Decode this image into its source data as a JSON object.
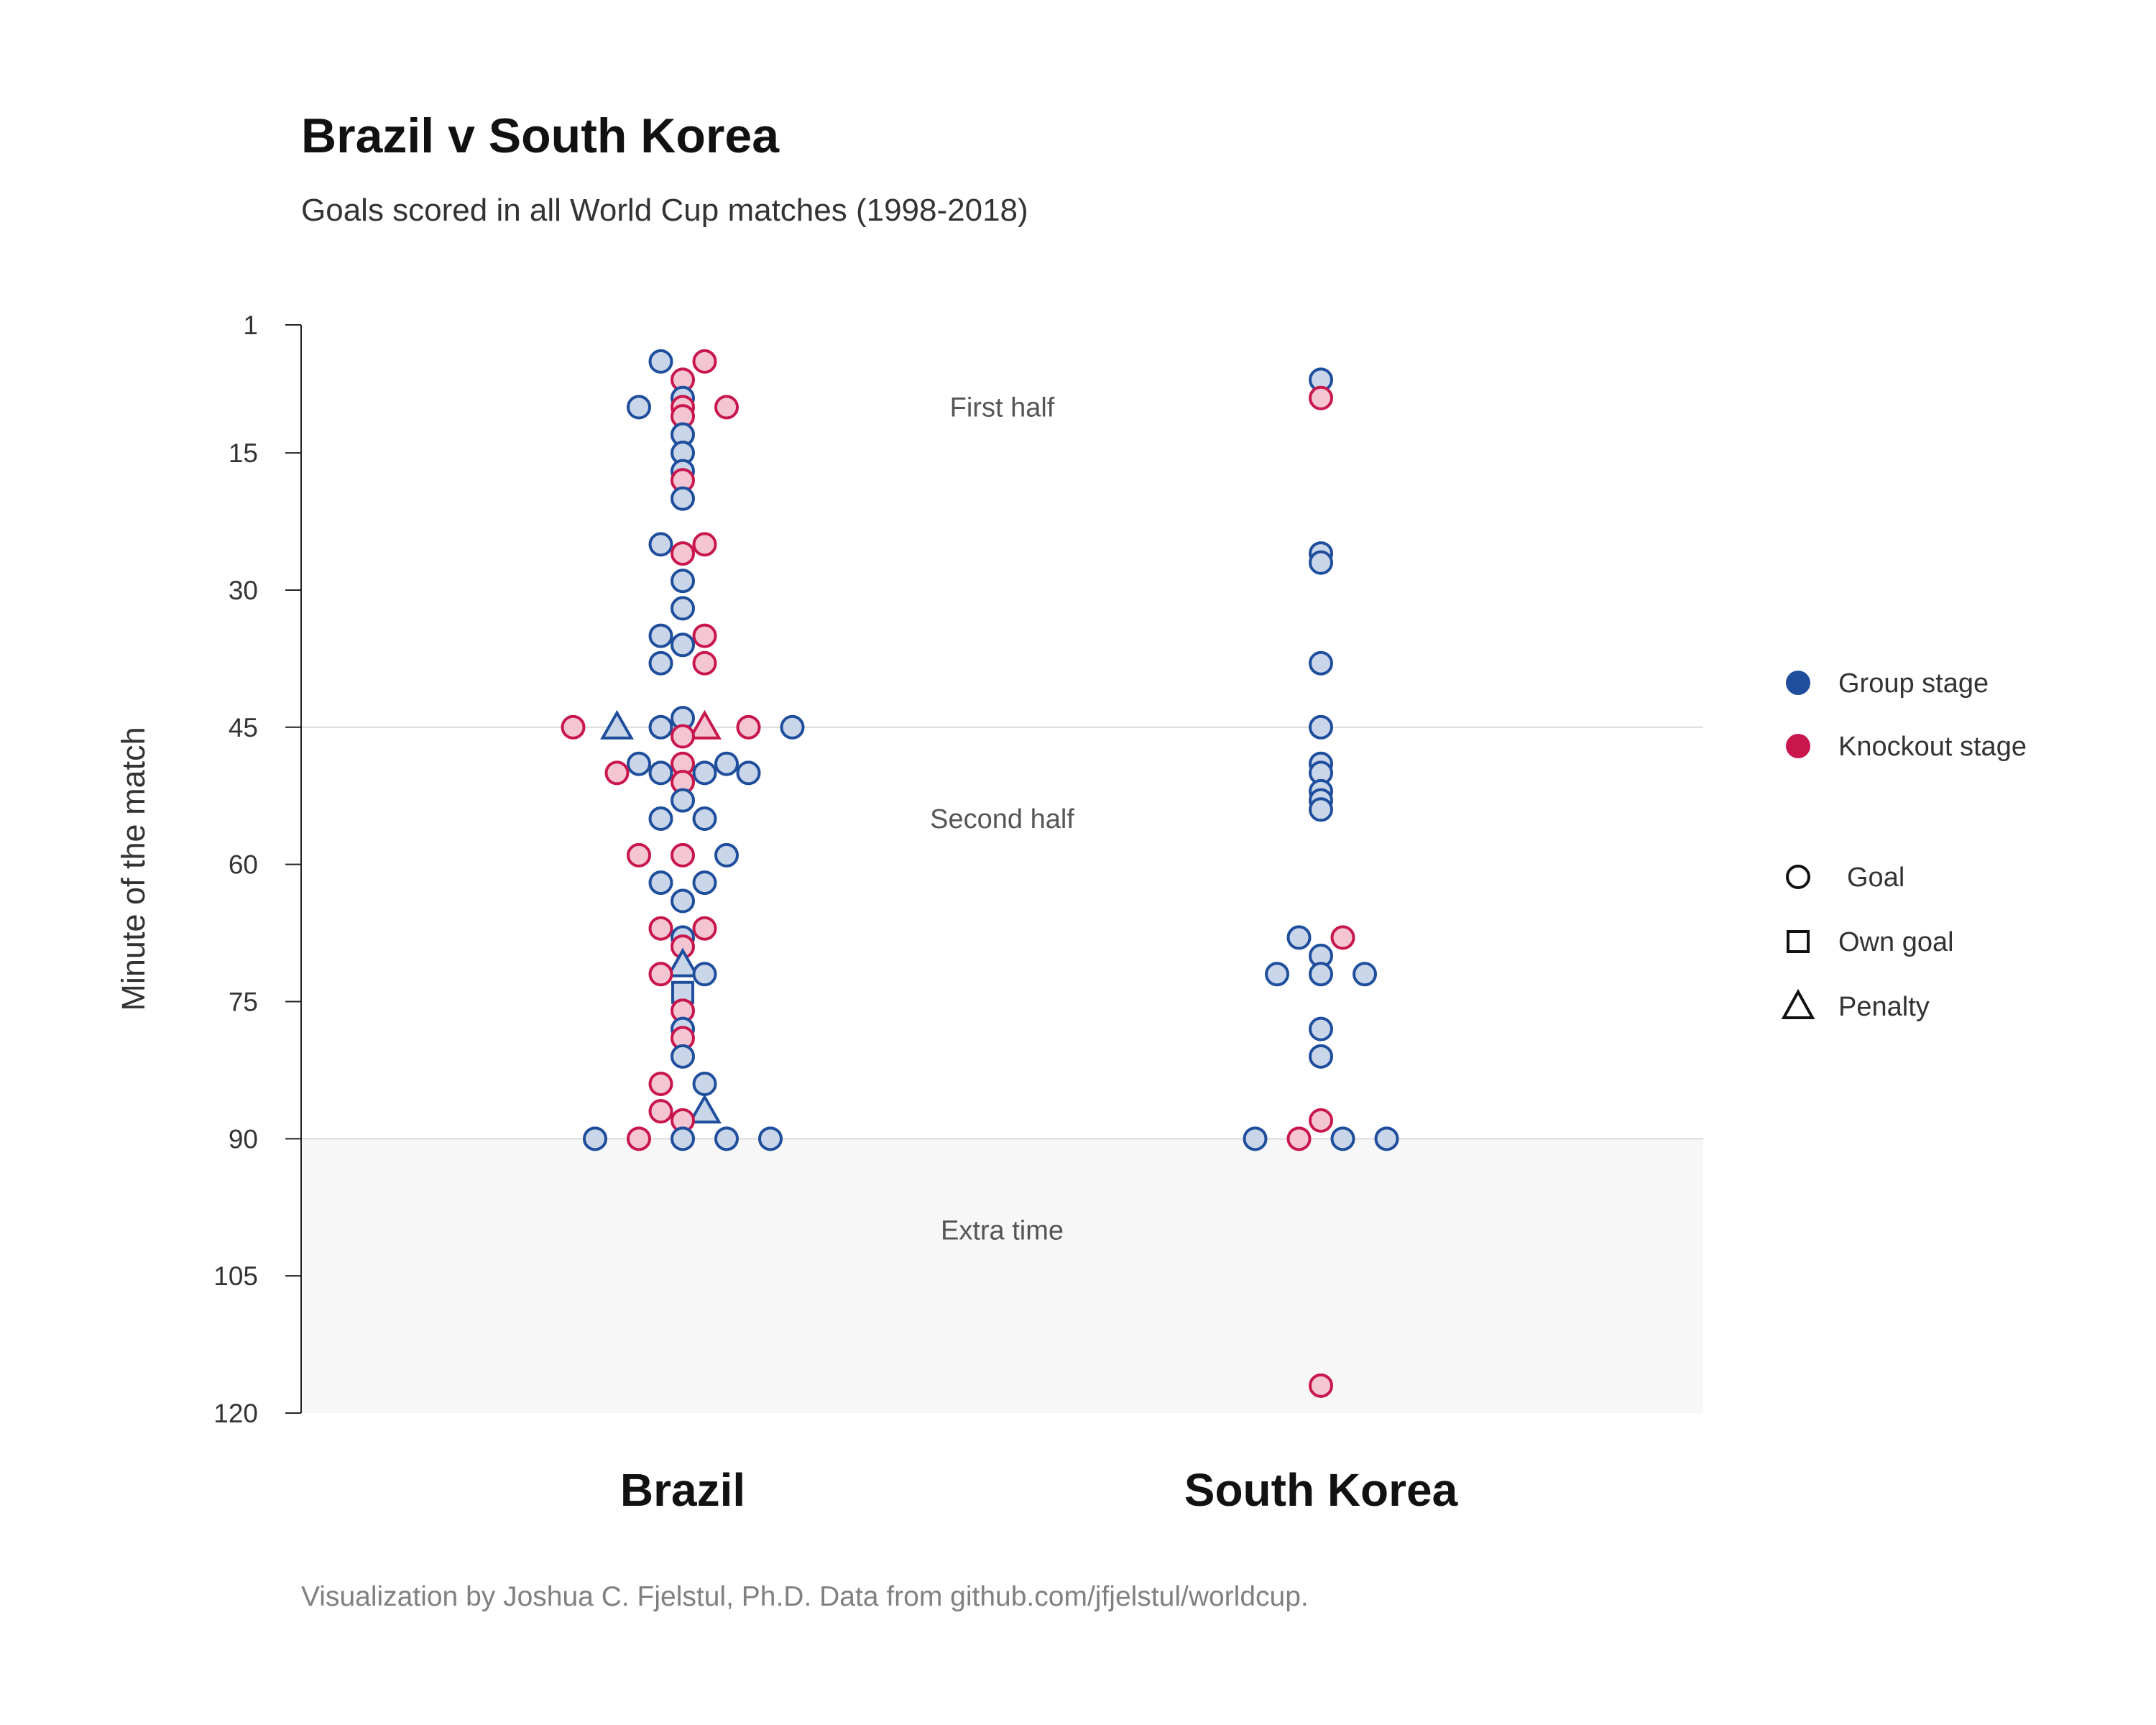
{
  "title": "Brazil v South Korea",
  "subtitle": "Goals scored in all World Cup matches (1998-2018)",
  "caption": "Visualization by Joshua C. Fjelstul, Ph.D. Data from github.com/jfjelstul/worldcup.",
  "colors": {
    "group": "#1f4e9c",
    "knockout": "#c8174d",
    "group_fill": "#c9d6ea",
    "knockout_fill": "#f4c6d4",
    "grid": "#d9d9d9",
    "extra_time_band": "#f7f7f7"
  },
  "legend": {
    "stage": [
      {
        "key": "group",
        "label": "Group stage"
      },
      {
        "key": "knockout",
        "label": "Knockout stage"
      }
    ],
    "type": [
      {
        "key": "goal",
        "label": "Goal"
      },
      {
        "key": "own_goal",
        "label": "Own goal"
      },
      {
        "key": "penalty",
        "label": "Penalty"
      }
    ]
  },
  "chart_data": {
    "type": "scatter",
    "ylabel": "Minute of the match",
    "xlabel": "",
    "ylim": [
      1,
      120
    ],
    "y_reversed": true,
    "yticks": [
      1,
      15,
      30,
      45,
      60,
      75,
      90,
      105,
      120
    ],
    "categories": [
      "Brazil",
      "South Korea"
    ],
    "period_labels": [
      {
        "label": "First half",
        "minute": 10
      },
      {
        "label": "Second half",
        "minute": 55
      },
      {
        "label": "Extra time",
        "minute": 100
      }
    ],
    "reference_lines": [
      45,
      90
    ],
    "shaded_range": [
      90,
      120
    ],
    "series": [
      {
        "name": "Brazil",
        "points": [
          {
            "minute": 5,
            "stage": "group",
            "type": "goal"
          },
          {
            "minute": 5,
            "stage": "knockout",
            "type": "goal"
          },
          {
            "minute": 7,
            "stage": "knockout",
            "type": "goal"
          },
          {
            "minute": 9,
            "stage": "group",
            "type": "goal"
          },
          {
            "minute": 10,
            "stage": "group",
            "type": "goal"
          },
          {
            "minute": 10,
            "stage": "knockout",
            "type": "goal"
          },
          {
            "minute": 10,
            "stage": "knockout",
            "type": "goal"
          },
          {
            "minute": 11,
            "stage": "knockout",
            "type": "goal"
          },
          {
            "minute": 13,
            "stage": "group",
            "type": "goal"
          },
          {
            "minute": 15,
            "stage": "group",
            "type": "goal"
          },
          {
            "minute": 17,
            "stage": "group",
            "type": "goal"
          },
          {
            "minute": 18,
            "stage": "knockout",
            "type": "goal"
          },
          {
            "minute": 20,
            "stage": "group",
            "type": "goal"
          },
          {
            "minute": 25,
            "stage": "group",
            "type": "goal"
          },
          {
            "minute": 25,
            "stage": "knockout",
            "type": "goal"
          },
          {
            "minute": 26,
            "stage": "knockout",
            "type": "goal"
          },
          {
            "minute": 29,
            "stage": "group",
            "type": "goal"
          },
          {
            "minute": 32,
            "stage": "group",
            "type": "goal"
          },
          {
            "minute": 35,
            "stage": "group",
            "type": "goal"
          },
          {
            "minute": 35,
            "stage": "knockout",
            "type": "goal"
          },
          {
            "minute": 36,
            "stage": "group",
            "type": "goal"
          },
          {
            "minute": 38,
            "stage": "group",
            "type": "goal"
          },
          {
            "minute": 38,
            "stage": "knockout",
            "type": "goal"
          },
          {
            "minute": 44,
            "stage": "group",
            "type": "goal"
          },
          {
            "minute": 45,
            "stage": "knockout",
            "type": "goal"
          },
          {
            "minute": 45,
            "stage": "group",
            "type": "penalty"
          },
          {
            "minute": 45,
            "stage": "group",
            "type": "goal"
          },
          {
            "minute": 45,
            "stage": "knockout",
            "type": "penalty"
          },
          {
            "minute": 45,
            "stage": "knockout",
            "type": "goal"
          },
          {
            "minute": 45,
            "stage": "group",
            "type": "goal"
          },
          {
            "minute": 46,
            "stage": "knockout",
            "type": "goal"
          },
          {
            "minute": 49,
            "stage": "group",
            "type": "goal"
          },
          {
            "minute": 49,
            "stage": "knockout",
            "type": "goal"
          },
          {
            "minute": 49,
            "stage": "group",
            "type": "goal"
          },
          {
            "minute": 50,
            "stage": "knockout",
            "type": "goal"
          },
          {
            "minute": 50,
            "stage": "group",
            "type": "goal"
          },
          {
            "minute": 50,
            "stage": "group",
            "type": "goal"
          },
          {
            "minute": 50,
            "stage": "group",
            "type": "goal"
          },
          {
            "minute": 51,
            "stage": "knockout",
            "type": "goal"
          },
          {
            "minute": 53,
            "stage": "group",
            "type": "goal"
          },
          {
            "minute": 55,
            "stage": "group",
            "type": "goal"
          },
          {
            "minute": 55,
            "stage": "group",
            "type": "goal"
          },
          {
            "minute": 59,
            "stage": "knockout",
            "type": "goal"
          },
          {
            "minute": 59,
            "stage": "knockout",
            "type": "goal"
          },
          {
            "minute": 59,
            "stage": "group",
            "type": "goal"
          },
          {
            "minute": 62,
            "stage": "group",
            "type": "goal"
          },
          {
            "minute": 62,
            "stage": "group",
            "type": "goal"
          },
          {
            "minute": 64,
            "stage": "group",
            "type": "goal"
          },
          {
            "minute": 67,
            "stage": "knockout",
            "type": "goal"
          },
          {
            "minute": 67,
            "stage": "knockout",
            "type": "goal"
          },
          {
            "minute": 68,
            "stage": "group",
            "type": "goal"
          },
          {
            "minute": 69,
            "stage": "knockout",
            "type": "goal"
          },
          {
            "minute": 71,
            "stage": "group",
            "type": "penalty"
          },
          {
            "minute": 72,
            "stage": "knockout",
            "type": "goal"
          },
          {
            "minute": 72,
            "stage": "group",
            "type": "goal"
          },
          {
            "minute": 74,
            "stage": "group",
            "type": "own_goal"
          },
          {
            "minute": 76,
            "stage": "knockout",
            "type": "goal"
          },
          {
            "minute": 78,
            "stage": "group",
            "type": "goal"
          },
          {
            "minute": 79,
            "stage": "knockout",
            "type": "goal"
          },
          {
            "minute": 81,
            "stage": "group",
            "type": "goal"
          },
          {
            "minute": 84,
            "stage": "knockout",
            "type": "goal"
          },
          {
            "minute": 84,
            "stage": "group",
            "type": "goal"
          },
          {
            "minute": 87,
            "stage": "knockout",
            "type": "goal"
          },
          {
            "minute": 87,
            "stage": "group",
            "type": "penalty"
          },
          {
            "minute": 88,
            "stage": "knockout",
            "type": "goal"
          },
          {
            "minute": 90,
            "stage": "group",
            "type": "goal"
          },
          {
            "minute": 90,
            "stage": "knockout",
            "type": "goal"
          },
          {
            "minute": 90,
            "stage": "group",
            "type": "goal"
          },
          {
            "minute": 90,
            "stage": "group",
            "type": "goal"
          },
          {
            "minute": 90,
            "stage": "group",
            "type": "goal"
          }
        ]
      },
      {
        "name": "South Korea",
        "points": [
          {
            "minute": 7,
            "stage": "group",
            "type": "goal"
          },
          {
            "minute": 9,
            "stage": "knockout",
            "type": "goal"
          },
          {
            "minute": 26,
            "stage": "group",
            "type": "goal"
          },
          {
            "minute": 27,
            "stage": "group",
            "type": "goal"
          },
          {
            "minute": 38,
            "stage": "group",
            "type": "goal"
          },
          {
            "minute": 45,
            "stage": "group",
            "type": "goal"
          },
          {
            "minute": 49,
            "stage": "group",
            "type": "goal"
          },
          {
            "minute": 50,
            "stage": "group",
            "type": "goal"
          },
          {
            "minute": 52,
            "stage": "group",
            "type": "goal"
          },
          {
            "minute": 53,
            "stage": "group",
            "type": "goal"
          },
          {
            "minute": 54,
            "stage": "group",
            "type": "goal"
          },
          {
            "minute": 68,
            "stage": "group",
            "type": "goal"
          },
          {
            "minute": 68,
            "stage": "knockout",
            "type": "goal"
          },
          {
            "minute": 70,
            "stage": "group",
            "type": "goal"
          },
          {
            "minute": 72,
            "stage": "group",
            "type": "goal"
          },
          {
            "minute": 72,
            "stage": "group",
            "type": "goal"
          },
          {
            "minute": 72,
            "stage": "group",
            "type": "goal"
          },
          {
            "minute": 78,
            "stage": "group",
            "type": "goal"
          },
          {
            "minute": 81,
            "stage": "group",
            "type": "goal"
          },
          {
            "minute": 88,
            "stage": "knockout",
            "type": "goal"
          },
          {
            "minute": 90,
            "stage": "group",
            "type": "goal"
          },
          {
            "minute": 90,
            "stage": "knockout",
            "type": "goal"
          },
          {
            "minute": 90,
            "stage": "group",
            "type": "goal"
          },
          {
            "minute": 90,
            "stage": "group",
            "type": "goal"
          },
          {
            "minute": 117,
            "stage": "knockout",
            "type": "goal"
          }
        ]
      }
    ]
  }
}
